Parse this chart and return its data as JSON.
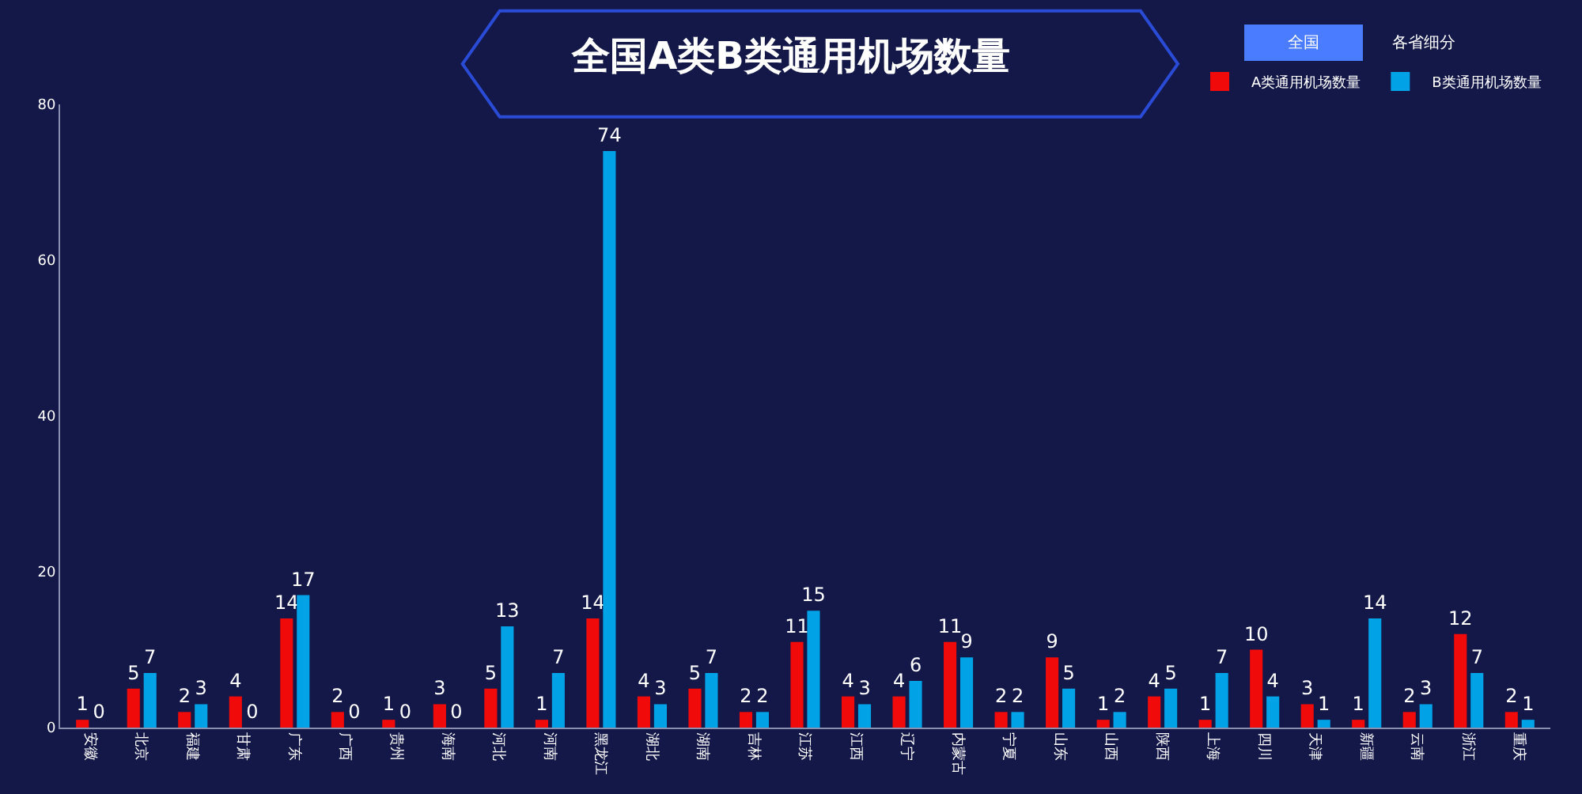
{
  "chart_data": {
    "type": "bar",
    "title": "全国A类B类通用机场数量",
    "categories": [
      "安徽",
      "北京",
      "福建",
      "甘肃",
      "广东",
      "广西",
      "贵州",
      "海南",
      "河北",
      "河南",
      "黑龙江",
      "湖北",
      "湖南",
      "吉林",
      "江苏",
      "江西",
      "辽宁",
      "内蒙古",
      "宁夏",
      "山东",
      "山西",
      "陕西",
      "上海",
      "四川",
      "天津",
      "新疆",
      "云南",
      "浙江",
      "重庆"
    ],
    "series": [
      {
        "name": "A类通用机场数量",
        "color": "#f00a0a",
        "values": [
          1,
          5,
          2,
          4,
          14,
          2,
          1,
          3,
          5,
          1,
          14,
          4,
          5,
          2,
          11,
          4,
          4,
          11,
          2,
          9,
          1,
          4,
          1,
          10,
          3,
          1,
          2,
          12,
          2
        ]
      },
      {
        "name": "B类通用机场数量",
        "color": "#02a2e6",
        "values": [
          0,
          7,
          3,
          0,
          17,
          0,
          0,
          0,
          13,
          7,
          74,
          3,
          7,
          2,
          15,
          3,
          6,
          9,
          2,
          5,
          2,
          5,
          7,
          4,
          1,
          14,
          3,
          7,
          1
        ]
      }
    ],
    "ylim": [
      0,
      80
    ],
    "yticks": [
      0,
      20,
      40,
      60,
      80
    ],
    "grid": false,
    "legend": "top right",
    "data_labels": true,
    "annotations": [
      "全国",
      "各省细分"
    ]
  }
}
